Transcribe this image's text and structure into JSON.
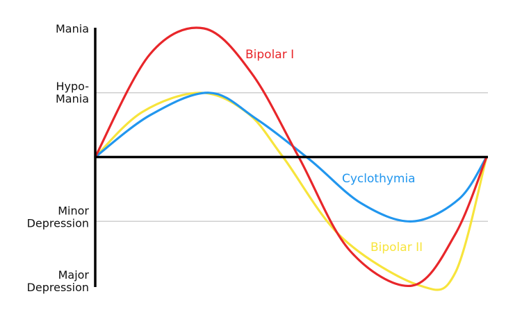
{
  "chart_data": {
    "type": "line",
    "title": "",
    "xlabel": "",
    "ylabel": "",
    "x_range": [
      0,
      1
    ],
    "ylim": [
      -2,
      2
    ],
    "y_ticks": [
      {
        "value": 2,
        "lines": [
          "Mania"
        ]
      },
      {
        "value": 1,
        "lines": [
          "Hypo-",
          "Mania"
        ]
      },
      {
        "value": -1,
        "lines": [
          "Minor",
          "Depression"
        ]
      },
      {
        "value": -2,
        "lines": [
          "Major",
          "Depression"
        ]
      }
    ],
    "reference_lines": [
      1,
      -1
    ],
    "baseline": 0,
    "series": [
      {
        "name": "Bipolar I",
        "color": "#e8262a",
        "points": [
          [
            0,
            0
          ],
          [
            0.14,
            1.6
          ],
          [
            0.278,
            2.0
          ],
          [
            0.4,
            1.3
          ],
          [
            0.52,
            0.0
          ],
          [
            0.65,
            -1.45
          ],
          [
            0.81,
            -2.0
          ],
          [
            0.92,
            -1.2
          ],
          [
            1.0,
            0.0
          ]
        ]
      },
      {
        "name": "Cyclothymia",
        "color": "#2196ee",
        "points": [
          [
            0,
            0
          ],
          [
            0.14,
            0.65
          ],
          [
            0.291,
            1.0
          ],
          [
            0.41,
            0.6
          ],
          [
            0.55,
            -0.05
          ],
          [
            0.68,
            -0.72
          ],
          [
            0.81,
            -1.0
          ],
          [
            0.93,
            -0.65
          ],
          [
            1.0,
            0.0
          ]
        ]
      },
      {
        "name": "Bipolar II",
        "color": "#f7e43c",
        "points": [
          [
            0,
            0
          ],
          [
            0.12,
            0.7
          ],
          [
            0.27,
            1.0
          ],
          [
            0.39,
            0.68
          ],
          [
            0.48,
            0.0
          ],
          [
            0.63,
            -1.25
          ],
          [
            0.83,
            -2.0
          ],
          [
            0.92,
            -1.8
          ],
          [
            1.0,
            0.0
          ]
        ]
      }
    ],
    "series_labels": [
      {
        "series": "Bipolar I",
        "text": "Bipolar I"
      },
      {
        "series": "Cyclothymia",
        "text": "Cyclothymia"
      },
      {
        "series": "Bipolar II",
        "text": "Bipolar II"
      }
    ]
  }
}
